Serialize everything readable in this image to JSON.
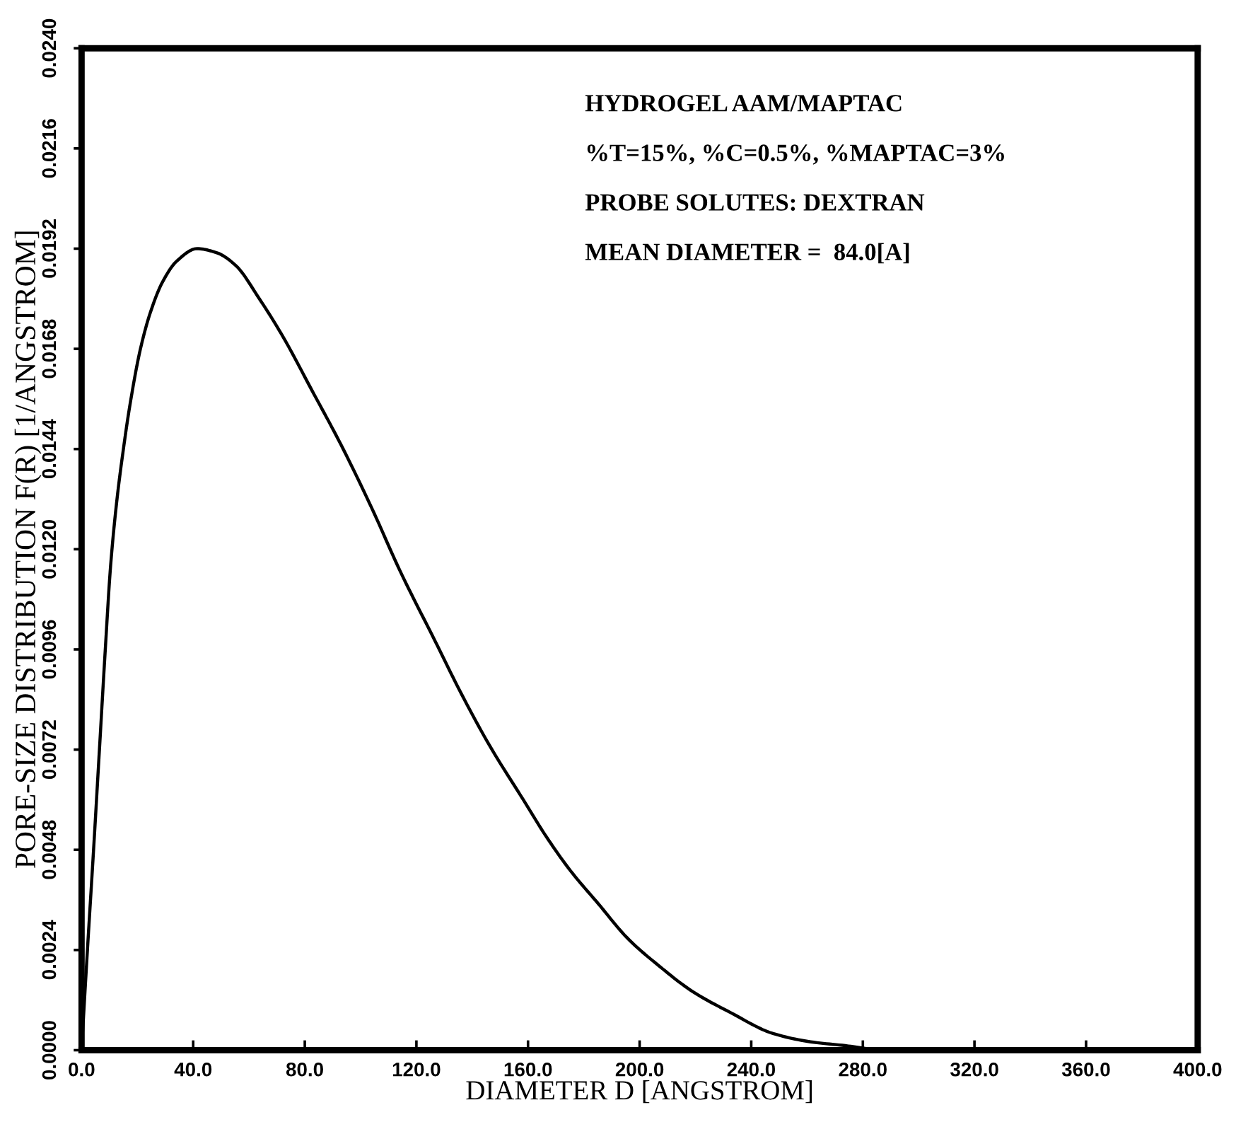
{
  "chart_data": {
    "type": "line",
    "xlabel": "DIAMETER D [ANGSTROM]",
    "ylabel": "PORE-SIZE DISTRIBUTION F(R) [1/ANGSTROM]",
    "annotations": [
      "HYDROGEL AAM/MAPTAC",
      "%T=15%, %C=0.5%, %MAPTAC=3%",
      "PROBE SOLUTES: DEXTRAN",
      "MEAN DIAMETER =  84.0[A]"
    ],
    "x": [
      0,
      2.1,
      4.3,
      6.4,
      8.5,
      10.4,
      12.7,
      15.2,
      17.2,
      21.1,
      24.8,
      29.0,
      34.1,
      41.4,
      48.5,
      55.2,
      63.7,
      72.1,
      82.6,
      93.0,
      103.9,
      114.0,
      126.7,
      136.4,
      146.2,
      158.3,
      166.7,
      175.2,
      185.3,
      195.4,
      207.3,
      219.1,
      232.6,
      247.8,
      261.3,
      274.8,
      285.0
    ],
    "series": [
      {
        "color": "#000000",
        "values": [
          0,
          0.0024,
          0.0048,
          0.0072,
          0.0096,
          0.0116,
          0.0132,
          0.0145,
          0.0154,
          0.0168,
          0.0177,
          0.0184,
          0.0189,
          0.0192,
          0.0191,
          0.0188,
          0.018,
          0.0171,
          0.0158,
          0.0145,
          0.013,
          0.0115,
          0.0098,
          0.0085,
          0.0073,
          0.006,
          0.0051,
          0.0043,
          0.0035,
          0.0027,
          0.002,
          0.0014,
          0.0009,
          0.0004,
          0.0002,
          0.0001,
          0.0
        ]
      }
    ],
    "xlim": [
      0,
      400
    ],
    "ylim": [
      0,
      0.024
    ],
    "xticks": [
      {
        "value": 0,
        "label": "0.0"
      },
      {
        "value": 40,
        "label": "40.0"
      },
      {
        "value": 80,
        "label": "80.0"
      },
      {
        "value": 120,
        "label": "120.0"
      },
      {
        "value": 160,
        "label": "160.0"
      },
      {
        "value": 200,
        "label": "200.0"
      },
      {
        "value": 240,
        "label": "240.0"
      },
      {
        "value": 280,
        "label": "280.0"
      },
      {
        "value": 320,
        "label": "320.0"
      },
      {
        "value": 360,
        "label": "360.0"
      },
      {
        "value": 400,
        "label": "400.0"
      }
    ],
    "yticks": [
      {
        "value": 0,
        "label": "0.0000"
      },
      {
        "value": 0.0024,
        "label": "0.0024"
      },
      {
        "value": 0.0048,
        "label": "0.0048"
      },
      {
        "value": 0.0072,
        "label": "0.0072"
      },
      {
        "value": 0.0096,
        "label": "0.0096"
      },
      {
        "value": 0.012,
        "label": "0.0120"
      },
      {
        "value": 0.0144,
        "label": "0.0144"
      },
      {
        "value": 0.0168,
        "label": "0.0168"
      },
      {
        "value": 0.0192,
        "label": "0.0192"
      },
      {
        "value": 0.0216,
        "label": "0.0216"
      },
      {
        "value": 0.024,
        "label": "0.0240"
      }
    ],
    "line_style": "solid"
  }
}
